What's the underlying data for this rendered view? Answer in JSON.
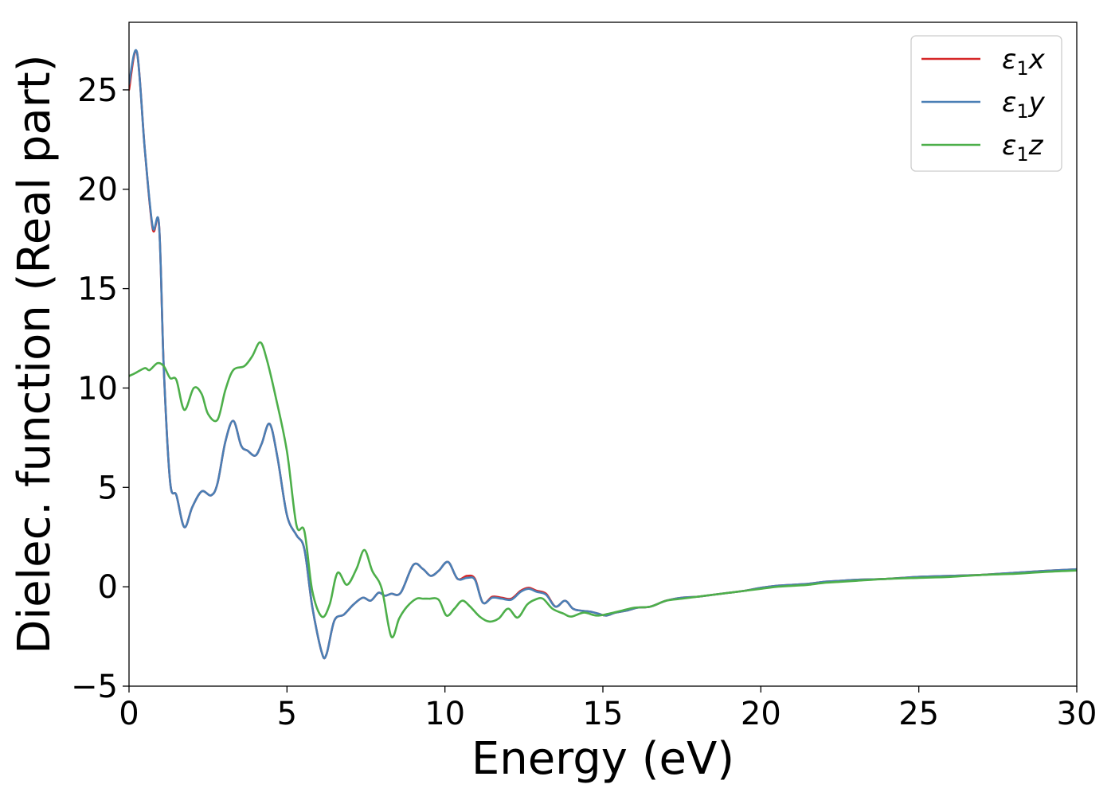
{
  "chart_data": {
    "type": "line",
    "title": "",
    "xlabel": "Energy (eV)",
    "ylabel": "Dielec. function (Real part)",
    "xlim": [
      0,
      30
    ],
    "ylim": [
      -5,
      28.4
    ],
    "xticks": [
      0,
      5,
      10,
      15,
      20,
      25,
      30
    ],
    "xtick_labels": [
      "0",
      "5",
      "10",
      "15",
      "20",
      "25",
      "30"
    ],
    "yticks": [
      -5,
      0,
      5,
      10,
      15,
      20,
      25
    ],
    "ytick_labels": [
      "−5",
      "0",
      "5",
      "10",
      "15",
      "20",
      "25"
    ],
    "grid": false,
    "legend_position": "top-right",
    "series": [
      {
        "name": "ε₁x",
        "legend_symbol": "ε",
        "legend_sub": "1",
        "legend_var": "x",
        "color": "#d62728",
        "x": [
          0,
          0.25,
          0.5,
          0.75,
          0.95,
          1.1,
          1.3,
          1.5,
          1.75,
          2.0,
          2.3,
          2.6,
          2.8,
          3.05,
          3.3,
          3.55,
          3.75,
          4.0,
          4.2,
          4.45,
          4.7,
          5.0,
          5.3,
          5.55,
          5.8,
          6.1,
          6.25,
          6.5,
          6.8,
          7.1,
          7.4,
          7.65,
          7.9,
          8.1,
          8.3,
          8.6,
          9.0,
          9.3,
          9.55,
          9.8,
          10.1,
          10.4,
          10.7,
          10.95,
          11.2,
          11.5,
          11.8,
          12.1,
          12.4,
          12.65,
          12.9,
          13.2,
          13.5,
          13.8,
          14.05,
          14.3,
          14.6,
          14.85,
          15.1,
          15.4,
          15.75,
          16.1,
          16.5,
          17.0,
          17.5,
          18.0,
          18.5,
          19.0,
          19.5,
          20.0,
          20.5,
          21.0,
          21.5,
          22.0,
          22.5,
          23.0,
          24.0,
          25.0,
          26.0,
          27.0,
          28.0,
          29.0,
          30.0
        ],
        "values": [
          25.0,
          26.9,
          22.0,
          18.0,
          18.2,
          11.0,
          5.3,
          4.6,
          3.0,
          4.0,
          4.8,
          4.6,
          5.2,
          7.3,
          8.35,
          7.1,
          6.85,
          6.6,
          7.2,
          8.2,
          6.5,
          3.6,
          2.6,
          1.9,
          -1.0,
          -3.3,
          -3.4,
          -1.7,
          -1.4,
          -0.9,
          -0.55,
          -0.7,
          -0.3,
          -0.45,
          -0.35,
          -0.3,
          1.1,
          0.9,
          0.55,
          0.8,
          1.25,
          0.4,
          0.55,
          0.4,
          -0.8,
          -0.5,
          -0.55,
          -0.6,
          -0.2,
          -0.05,
          -0.2,
          -0.35,
          -1.0,
          -0.7,
          -1.1,
          -1.2,
          -1.25,
          -1.35,
          -1.45,
          -1.3,
          -1.2,
          -1.05,
          -1.0,
          -0.7,
          -0.55,
          -0.5,
          -0.4,
          -0.3,
          -0.2,
          -0.05,
          0.05,
          0.1,
          0.15,
          0.25,
          0.3,
          0.35,
          0.4,
          0.5,
          0.55,
          0.6,
          0.7,
          0.8,
          0.88
        ]
      },
      {
        "name": "ε₁y",
        "legend_symbol": "ε",
        "legend_sub": "1",
        "legend_var": "y",
        "color": "#4a7fb5",
        "x": [
          0,
          0.25,
          0.5,
          0.75,
          0.95,
          1.1,
          1.3,
          1.5,
          1.75,
          2.0,
          2.3,
          2.6,
          2.8,
          3.05,
          3.3,
          3.55,
          3.75,
          4.0,
          4.2,
          4.45,
          4.7,
          5.0,
          5.3,
          5.55,
          5.8,
          6.1,
          6.25,
          6.5,
          6.8,
          7.1,
          7.4,
          7.65,
          7.9,
          8.1,
          8.3,
          8.6,
          9.0,
          9.3,
          9.55,
          9.8,
          10.1,
          10.4,
          10.7,
          10.95,
          11.2,
          11.5,
          11.8,
          12.1,
          12.4,
          12.65,
          12.9,
          13.2,
          13.5,
          13.8,
          14.05,
          14.3,
          14.6,
          14.85,
          15.1,
          15.4,
          15.75,
          16.1,
          16.5,
          17.0,
          17.5,
          18.0,
          18.5,
          19.0,
          19.5,
          20.0,
          20.5,
          21.0,
          21.5,
          22.0,
          22.5,
          23.0,
          24.0,
          25.0,
          26.0,
          27.0,
          28.0,
          29.0,
          30.0
        ],
        "values": [
          25.3,
          26.9,
          22.0,
          18.1,
          18.2,
          11.0,
          5.3,
          4.6,
          3.0,
          4.0,
          4.8,
          4.6,
          5.2,
          7.3,
          8.35,
          7.1,
          6.85,
          6.6,
          7.2,
          8.2,
          6.5,
          3.6,
          2.6,
          1.9,
          -1.0,
          -3.3,
          -3.4,
          -1.7,
          -1.4,
          -0.9,
          -0.55,
          -0.7,
          -0.3,
          -0.45,
          -0.35,
          -0.3,
          1.1,
          0.9,
          0.55,
          0.8,
          1.25,
          0.4,
          0.45,
          0.35,
          -0.8,
          -0.55,
          -0.6,
          -0.65,
          -0.25,
          -0.1,
          -0.25,
          -0.4,
          -1.0,
          -0.7,
          -1.1,
          -1.2,
          -1.25,
          -1.35,
          -1.45,
          -1.3,
          -1.2,
          -1.05,
          -1.0,
          -0.7,
          -0.55,
          -0.5,
          -0.4,
          -0.3,
          -0.2,
          -0.05,
          0.05,
          0.1,
          0.15,
          0.25,
          0.3,
          0.35,
          0.4,
          0.5,
          0.55,
          0.6,
          0.7,
          0.8,
          0.88
        ]
      },
      {
        "name": "ε₁z",
        "legend_symbol": "ε",
        "legend_sub": "1",
        "legend_var": "z",
        "color": "#4daf4a",
        "x": [
          0,
          0.2,
          0.5,
          0.65,
          0.9,
          1.1,
          1.3,
          1.5,
          1.75,
          2.05,
          2.3,
          2.5,
          2.8,
          3.05,
          3.3,
          3.65,
          3.9,
          4.15,
          4.35,
          4.65,
          5.0,
          5.3,
          5.55,
          5.8,
          6.1,
          6.35,
          6.6,
          6.9,
          7.2,
          7.45,
          7.7,
          8.0,
          8.3,
          8.55,
          8.8,
          9.1,
          9.3,
          9.5,
          9.8,
          10.05,
          10.3,
          10.55,
          10.8,
          11.1,
          11.4,
          11.7,
          12.0,
          12.3,
          12.6,
          12.85,
          13.1,
          13.4,
          13.75,
          14.0,
          14.4,
          14.8,
          15.2,
          15.6,
          16.0,
          16.5,
          17.0,
          17.5,
          18.0,
          18.5,
          19.0,
          19.5,
          20.0,
          20.5,
          21.0,
          21.5,
          22.0,
          22.5,
          23.0,
          24.0,
          25.0,
          26.0,
          27.0,
          28.0,
          29.0,
          30.0
        ],
        "values": [
          10.6,
          10.75,
          11.0,
          10.9,
          11.25,
          11.1,
          10.5,
          10.4,
          8.9,
          10.0,
          9.7,
          8.7,
          8.4,
          9.9,
          10.9,
          11.1,
          11.6,
          12.3,
          11.5,
          9.5,
          6.8,
          3.1,
          2.8,
          -0.2,
          -1.5,
          -0.9,
          0.7,
          0.1,
          0.9,
          1.85,
          0.8,
          -0.1,
          -2.5,
          -1.6,
          -1.0,
          -0.6,
          -0.6,
          -0.6,
          -0.65,
          -1.45,
          -1.1,
          -0.7,
          -1.0,
          -1.5,
          -1.75,
          -1.6,
          -1.1,
          -1.55,
          -0.9,
          -0.65,
          -0.6,
          -1.1,
          -1.35,
          -1.5,
          -1.3,
          -1.45,
          -1.35,
          -1.2,
          -1.05,
          -1.0,
          -0.7,
          -0.6,
          -0.5,
          -0.4,
          -0.3,
          -0.2,
          -0.1,
          0.0,
          0.05,
          0.1,
          0.2,
          0.25,
          0.3,
          0.4,
          0.45,
          0.5,
          0.6,
          0.65,
          0.75,
          0.82
        ]
      }
    ]
  }
}
